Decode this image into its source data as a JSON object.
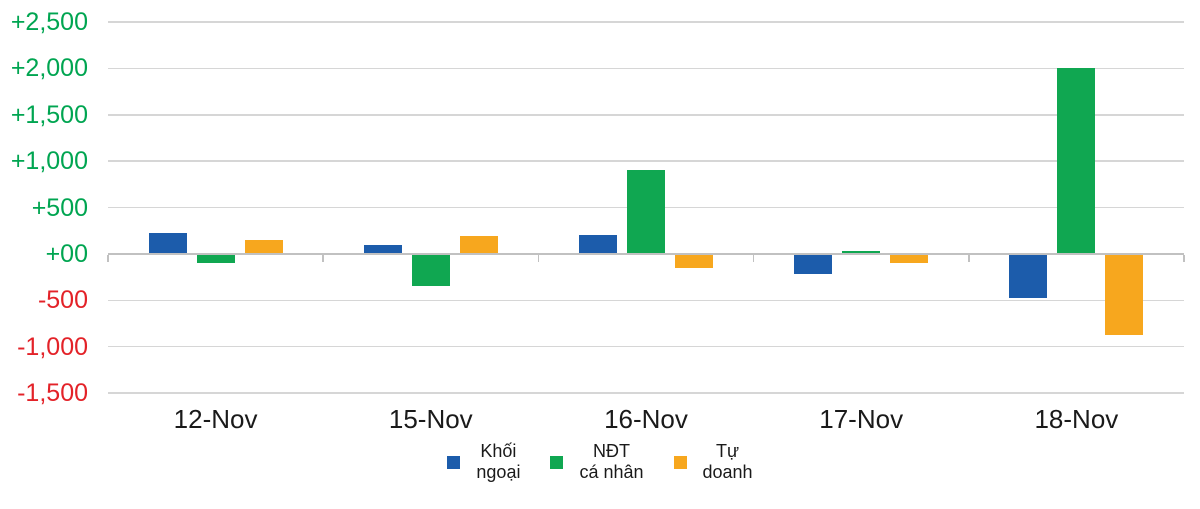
{
  "chart_data": {
    "type": "bar",
    "title": "",
    "xlabel": "",
    "ylabel": "",
    "categories": [
      "12-Nov",
      "15-Nov",
      "16-Nov",
      "17-Nov",
      "18-Nov"
    ],
    "series": [
      {
        "name": "Khối ngoại",
        "color": "#1C5CAB",
        "values": [
          220,
          100,
          200,
          -220,
          -480
        ]
      },
      {
        "name": "NĐT cá nhân",
        "color": "#10A751",
        "values": [
          -100,
          -350,
          900,
          30,
          2000
        ]
      },
      {
        "name": "Tự doanh",
        "color": "#F7A71E",
        "values": [
          150,
          190,
          -150,
          -100,
          -880
        ]
      }
    ],
    "ylim": [
      -1500,
      2500
    ],
    "ytick_step": 500,
    "ytick_labels": [
      "+2,500",
      "+2,000",
      "+1,500",
      "+1,000",
      "+500",
      "+00",
      "-500",
      "-1,000",
      "-1,500"
    ],
    "grid": true,
    "legend_position": "bottom",
    "colors": {
      "positive_tick_label": "#00A551",
      "negative_tick_label": "#E32228",
      "gridline": "#D6D6D6",
      "axis_line": "#C1C1C1",
      "x_tick_label": "#1A1A1A",
      "background": "#FFFFFF"
    }
  },
  "legend": {
    "items": [
      {
        "series": "Khối ngoại",
        "line1": "Khối",
        "line2": "ngoại",
        "color": "#1C5CAB"
      },
      {
        "series": "NĐT cá nhân",
        "line1": "NĐT",
        "line2": "cá nhân",
        "color": "#10A751"
      },
      {
        "series": "Tự doanh",
        "line1": "Tự",
        "line2": "doanh",
        "color": "#F7A71E"
      }
    ]
  }
}
